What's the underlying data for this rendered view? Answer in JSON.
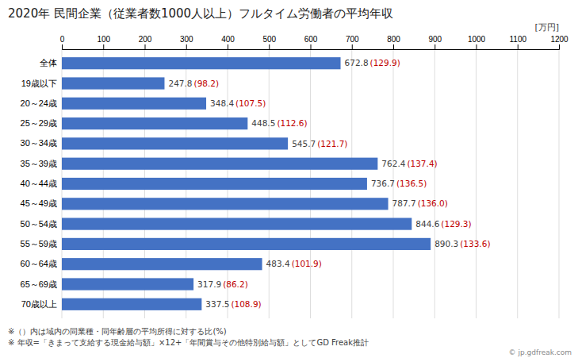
{
  "chart_data": {
    "type": "bar",
    "orientation": "horizontal",
    "title": "2020年 民間企業（従業者数1000人以上）フルタイム労働者の平均年収",
    "unit_label": "[万円]",
    "categories": [
      "全体",
      "19歳以下",
      "20～24歳",
      "25～29歳",
      "30～34歳",
      "35～39歳",
      "40～44歳",
      "45～49歳",
      "50～54歳",
      "55～59歳",
      "60～64歳",
      "65～69歳",
      "70歳以上"
    ],
    "values": [
      672.8,
      247.8,
      348.4,
      448.5,
      545.7,
      762.4,
      736.7,
      787.7,
      844.6,
      890.3,
      483.4,
      317.9,
      337.5
    ],
    "data_labels": true,
    "ratio_labels": [
      "(129.9)",
      "(98.2)",
      "(107.5)",
      "(112.6)",
      "(121.7)",
      "(137.4)",
      "(136.5)",
      "(136.0)",
      "(129.3)",
      "(133.6)",
      "(101.9)",
      "(86.2)",
      "(108.9)"
    ],
    "color": "#4472C4",
    "xlim": [
      0,
      1200
    ],
    "xticks": [
      0,
      100,
      200,
      300,
      400,
      500,
      600,
      700,
      800,
      900,
      1000,
      1100,
      1200
    ],
    "grid": true,
    "footnotes": [
      "※（）内は域内の同業種・同年齢層の平均所得に対する比(%)",
      "※ 年収=「きまって支給する現金給与額」×12+「年間賞与その他特別給与額」としてGD Freak推計"
    ],
    "watermark": "© jp.gdfreak.com"
  }
}
